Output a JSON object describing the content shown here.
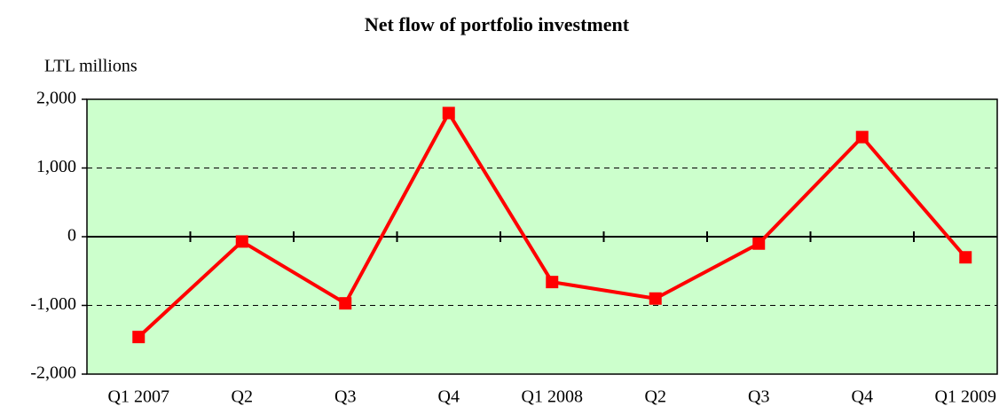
{
  "chart_data": {
    "type": "line",
    "title": "Net flow of portfolio investment",
    "y_axis_label": "LTL millions",
    "categories": [
      "Q1 2007",
      "Q2",
      "Q3",
      "Q4",
      "Q1 2008",
      "Q2",
      "Q3",
      "Q4",
      "Q1 2009"
    ],
    "series": [
      {
        "name": "Net flow",
        "color": "#ff0000",
        "values": [
          -1460,
          -70,
          -970,
          1800,
          -660,
          -900,
          -100,
          1450,
          -300
        ]
      }
    ],
    "ylim": [
      -2000,
      2000
    ],
    "yticks": [
      {
        "value": -2000,
        "label": "-2,000"
      },
      {
        "value": -1000,
        "label": "-1,000"
      },
      0,
      {
        "value": 1000,
        "label": "1,000"
      },
      {
        "value": 2000,
        "label": "2,000"
      }
    ],
    "grid": true,
    "plot_background": "#ccffcc"
  }
}
